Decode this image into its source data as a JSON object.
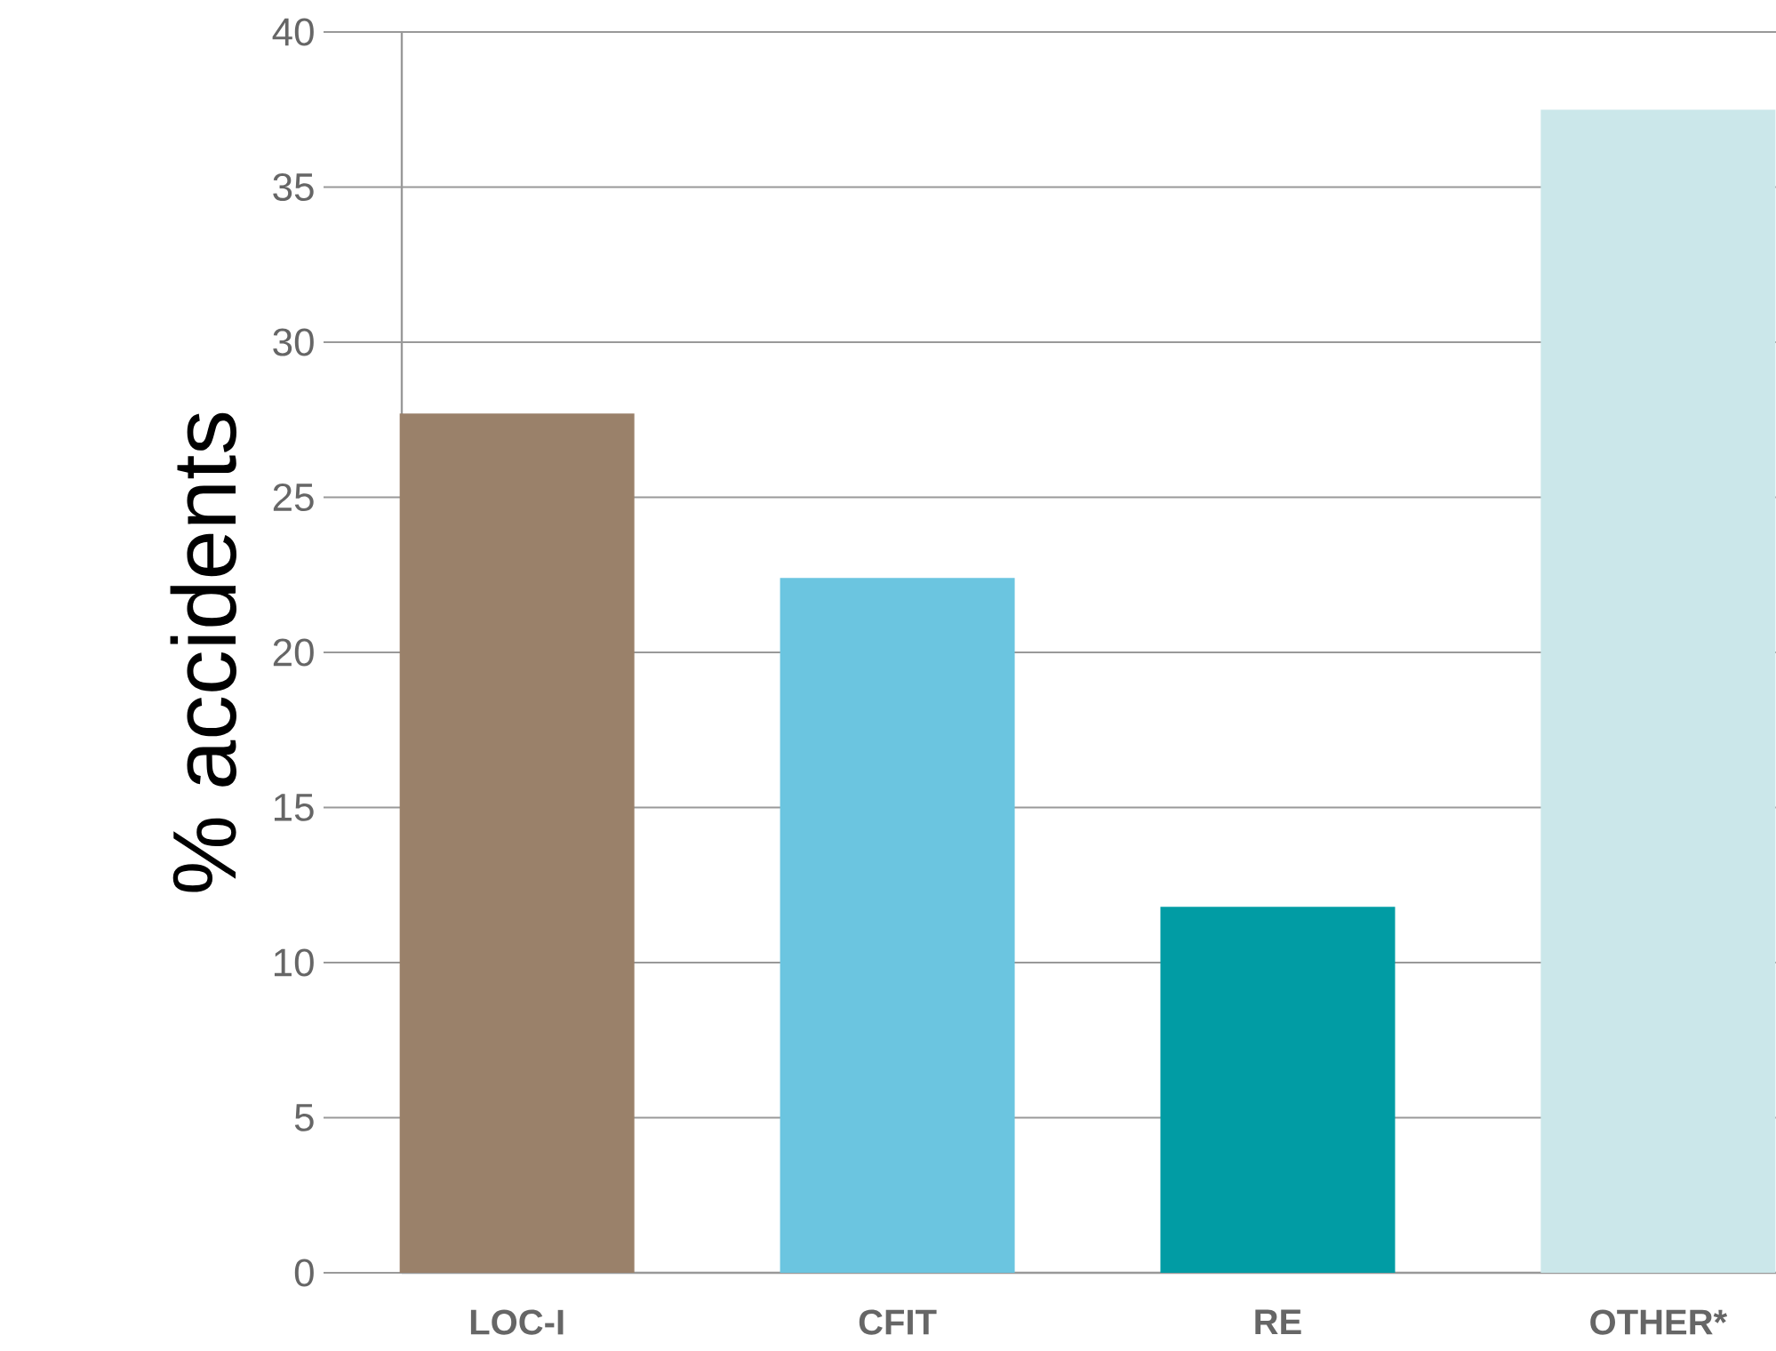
{
  "chart_data": {
    "type": "bar",
    "ylabel": "% accidents",
    "categories": [
      "LOC-I",
      "CFIT",
      "RE",
      "OTHER*"
    ],
    "values": [
      27.7,
      22.4,
      11.8,
      37.5
    ],
    "colors": [
      "#9a816a",
      "#6bc5e0",
      "#019ca4",
      "#cbe7ea"
    ],
    "ylim": [
      0,
      40
    ],
    "yticks": [
      0,
      5,
      10,
      15,
      20,
      25,
      30,
      35,
      40
    ],
    "grid": "y"
  }
}
